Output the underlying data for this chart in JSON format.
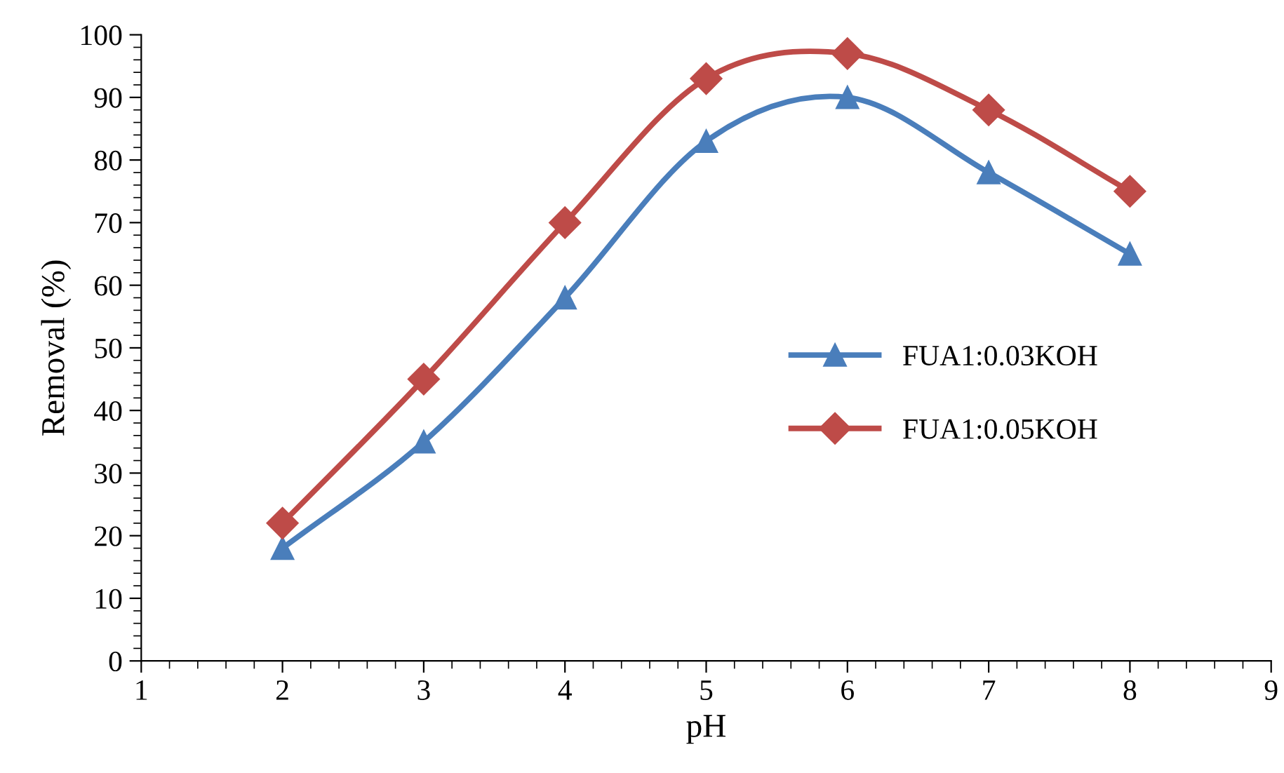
{
  "chart_data": {
    "type": "line",
    "xlabel": "pH",
    "ylabel": "Removal (%)",
    "x": [
      2,
      3,
      4,
      5,
      6,
      7,
      8
    ],
    "series": [
      {
        "name": "FUA1:0.03KOH",
        "color": "#4a7ebb",
        "marker": "triangle",
        "values": [
          18,
          35,
          58,
          83,
          90,
          78,
          65
        ]
      },
      {
        "name": "FUA1:0.05KOH",
        "color": "#be4b48",
        "marker": "diamond",
        "values": [
          22,
          45,
          70,
          93,
          97,
          88,
          75
        ]
      }
    ],
    "xlim": [
      1,
      9
    ],
    "xticks": [
      1,
      2,
      3,
      4,
      5,
      6,
      7,
      8,
      9
    ],
    "ylim": [
      0,
      100
    ],
    "yticks": [
      0,
      10,
      20,
      30,
      40,
      50,
      60,
      70,
      80,
      90,
      100
    ],
    "grid": false,
    "legend": "center right",
    "line_style": "solid"
  }
}
